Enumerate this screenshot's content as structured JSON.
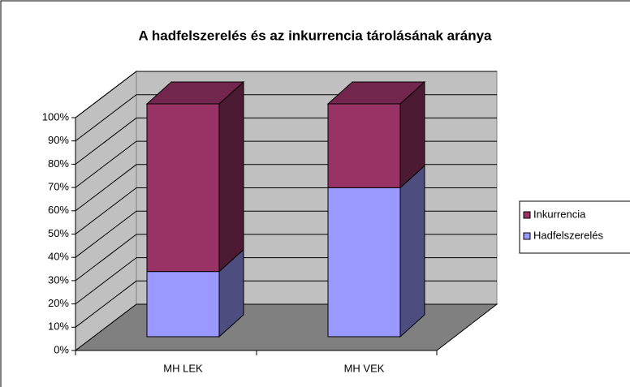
{
  "chart_data": {
    "type": "bar3d_stacked",
    "title": "A hadfelszerelés és az inkurrencia tárolásának aránya",
    "categories": [
      "MH LEK",
      "MH VEK"
    ],
    "series": [
      {
        "name": "Hadfelszerelés",
        "color": "#9999ff",
        "values": [
          28,
          64
        ]
      },
      {
        "name": "Inkurrencia",
        "color": "#993366",
        "values": [
          72,
          36
        ]
      }
    ],
    "ylim": [
      0,
      100
    ],
    "yticks": [
      {
        "value": 0,
        "label": "0%"
      },
      {
        "value": 10,
        "label": "10%"
      },
      {
        "value": 20,
        "label": "20%"
      },
      {
        "value": 30,
        "label": "30%"
      },
      {
        "value": 40,
        "label": "40%"
      },
      {
        "value": 50,
        "label": "50%"
      },
      {
        "value": 60,
        "label": "60%"
      },
      {
        "value": 70,
        "label": "70%"
      },
      {
        "value": 80,
        "label": "80%"
      },
      {
        "value": 90,
        "label": "90%"
      },
      {
        "value": 100,
        "label": "100%"
      }
    ],
    "grid": true
  }
}
